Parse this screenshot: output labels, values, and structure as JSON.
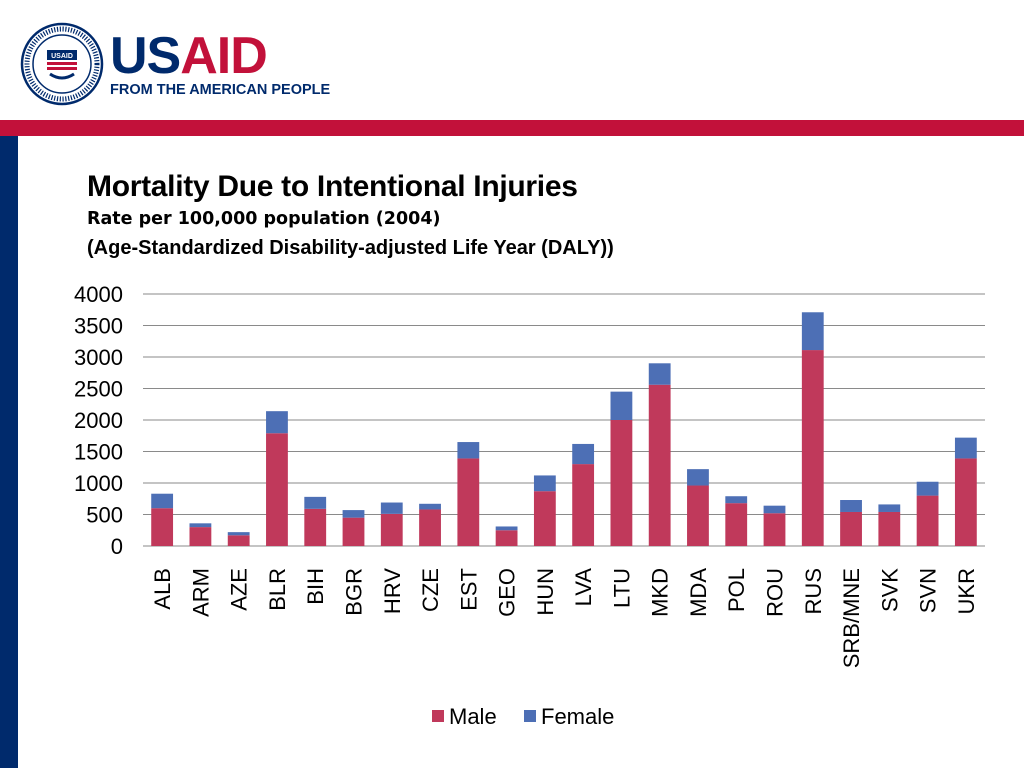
{
  "header": {
    "logo_word_1": "US",
    "logo_word_2": "AID",
    "tagline": "FROM THE AMERICAN PEOPLE",
    "seal_text": "UNITED STATES AGENCY FOR INTERNATIONAL DEVELOPMENT",
    "seal_inner": "USAID"
  },
  "colors": {
    "navy": "#002a6c",
    "red": "#c2113a",
    "male": "#c0395b",
    "female": "#4d6fb5"
  },
  "slide": {
    "title": "Mortality Due to Intentional Injuries",
    "subtitle": "Rate per 100,000 population (2004)",
    "subtitle2": "(Age-Standardized Disability-adjusted Life Year (DALY))"
  },
  "chart_data": {
    "type": "bar",
    "stacked": true,
    "categories": [
      "ALB",
      "ARM",
      "AZE",
      "BLR",
      "BIH",
      "BGR",
      "HRV",
      "CZE",
      "EST",
      "GEO",
      "HUN",
      "LVA",
      "LTU",
      "MKD",
      "MDA",
      "POL",
      "ROU",
      "RUS",
      "SRB/MNE",
      "SVK",
      "SVN",
      "UKR"
    ],
    "series": [
      {
        "name": "Male",
        "color": "#c0395b",
        "values": [
          600,
          300,
          170,
          1790,
          590,
          450,
          510,
          580,
          1390,
          250,
          870,
          1300,
          2000,
          2560,
          960,
          680,
          520,
          3110,
          540,
          540,
          800,
          1390
        ]
      },
      {
        "name": "Female",
        "color": "#4d6fb5",
        "values": [
          230,
          60,
          50,
          350,
          190,
          120,
          180,
          90,
          260,
          60,
          250,
          320,
          450,
          340,
          260,
          110,
          120,
          600,
          190,
          120,
          220,
          330
        ]
      }
    ],
    "ylim": [
      0,
      4000
    ],
    "yticks": [
      0,
      500,
      1000,
      1500,
      2000,
      2500,
      3000,
      3500,
      4000
    ],
    "grid": true,
    "legend_position": "bottom"
  }
}
